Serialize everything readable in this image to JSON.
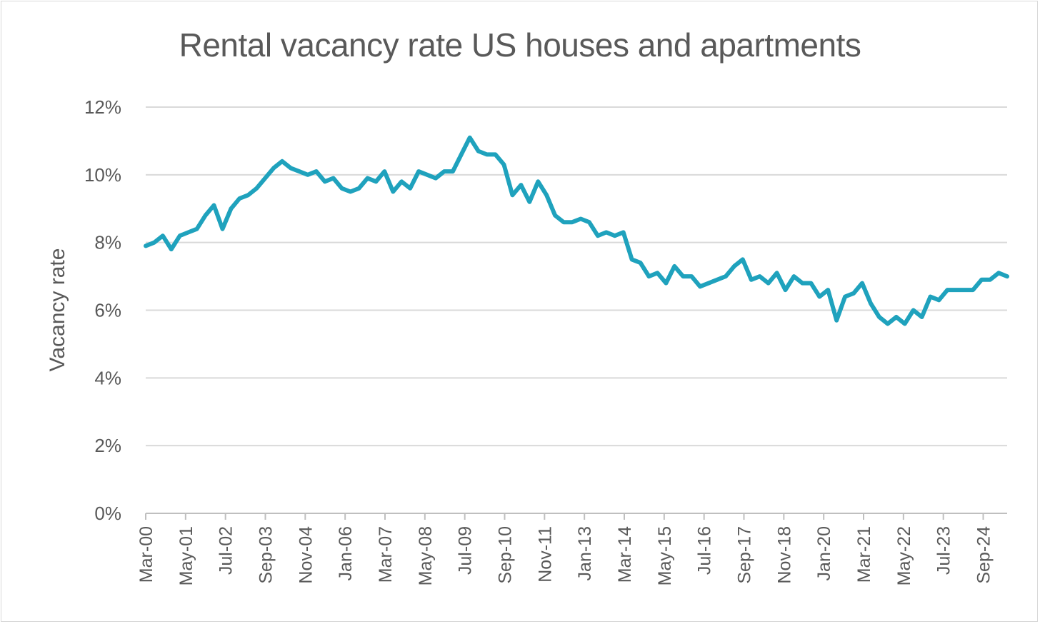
{
  "chart_data": {
    "type": "line",
    "title": "Rental vacancy rate US houses and apartments",
    "xlabel": "",
    "ylabel": "Vacancy rate",
    "ylim": [
      0,
      12
    ],
    "yticks": [
      "0%",
      "2%",
      "4%",
      "6%",
      "8%",
      "10%",
      "12%"
    ],
    "xtick_labels": [
      "Mar-00",
      "May-01",
      "Jul-02",
      "Sep-03",
      "Nov-04",
      "Jan-06",
      "Mar-07",
      "May-08",
      "Jul-09",
      "Sep-10",
      "Nov-11",
      "Jan-13",
      "Mar-14",
      "May-15",
      "Jul-16",
      "Sep-17",
      "Nov-18",
      "Jan-20",
      "Mar-21",
      "May-22",
      "Jul-23",
      "Sep-24"
    ],
    "line_color": "#1fa2bd",
    "series": [
      {
        "name": "Vacancy rate",
        "values": [
          7.9,
          8.0,
          8.2,
          7.8,
          8.2,
          8.3,
          8.4,
          8.8,
          9.1,
          8.4,
          9.0,
          9.3,
          9.4,
          9.6,
          9.9,
          10.2,
          10.4,
          10.2,
          10.1,
          10.0,
          10.1,
          9.8,
          9.9,
          9.6,
          9.5,
          9.6,
          9.9,
          9.8,
          10.1,
          9.5,
          9.8,
          9.6,
          10.1,
          10.0,
          9.9,
          10.1,
          10.1,
          10.6,
          11.1,
          10.7,
          10.6,
          10.6,
          10.3,
          9.4,
          9.7,
          9.2,
          9.8,
          9.4,
          8.8,
          8.6,
          8.6,
          8.7,
          8.6,
          8.2,
          8.3,
          8.2,
          8.3,
          7.5,
          7.4,
          7.0,
          7.1,
          6.8,
          7.3,
          7.0,
          7.0,
          6.7,
          6.8,
          6.9,
          7.0,
          7.3,
          7.5,
          6.9,
          7.0,
          6.8,
          7.1,
          6.6,
          7.0,
          6.8,
          6.8,
          6.4,
          6.6,
          5.7,
          6.4,
          6.5,
          6.8,
          6.2,
          5.8,
          5.6,
          5.8,
          5.6,
          6.0,
          5.8,
          6.4,
          6.3,
          6.6,
          6.6,
          6.6,
          6.6,
          6.9,
          6.9,
          7.1,
          7.0
        ]
      }
    ]
  }
}
